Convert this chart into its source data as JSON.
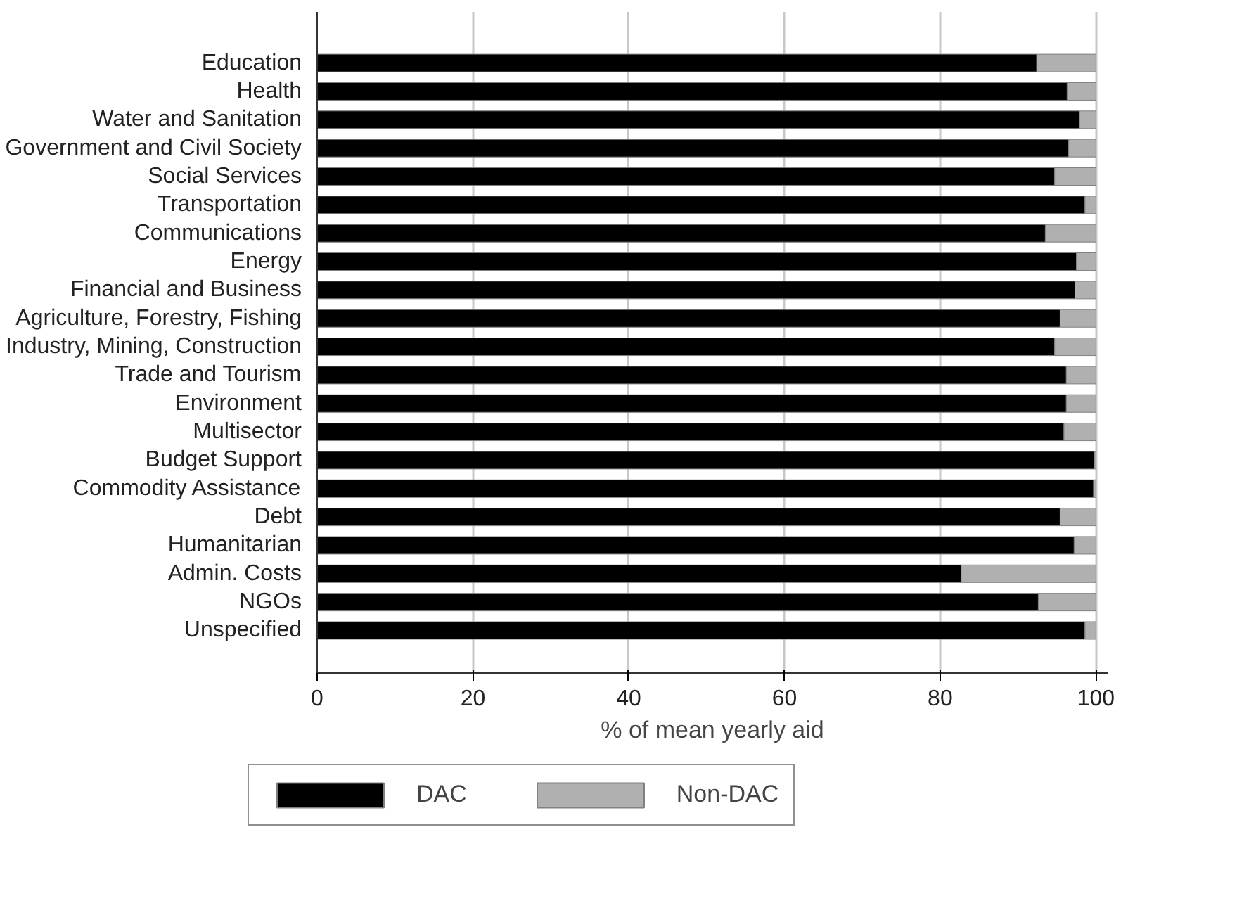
{
  "chart_data": {
    "type": "bar",
    "orientation": "horizontal",
    "stacked": true,
    "xlabel": "% of mean yearly aid",
    "categories": [
      "Education",
      "Health",
      "Water and Sanitation",
      "Government and Civil Society",
      "Social Services",
      "Transportation",
      "Communications",
      "Energy",
      "Financial and Business",
      "Agriculture, Forestry, Fishing",
      "Industry, Mining, Construction",
      "Trade and Tourism",
      "Environment",
      "Multisector",
      "Budget Support",
      "Commodity Assistance",
      "Debt",
      "Humanitarian",
      "Admin. Costs",
      "NGOs",
      "Unspecified"
    ],
    "series": [
      {
        "name": "DAC",
        "color": "#000000",
        "values": [
          92.4,
          96.3,
          97.9,
          96.5,
          94.7,
          98.6,
          93.5,
          97.5,
          97.3,
          95.4,
          94.7,
          96.2,
          96.2,
          95.9,
          99.8,
          99.7,
          95.4,
          97.2,
          82.7,
          92.6,
          98.6
        ]
      },
      {
        "name": "Non-DAC",
        "color": "#b0b0b0",
        "values": [
          7.6,
          3.7,
          2.1,
          3.5,
          5.3,
          1.4,
          6.5,
          2.5,
          2.7,
          4.6,
          5.3,
          3.8,
          3.8,
          4.1,
          0.2,
          0.3,
          4.6,
          2.8,
          17.3,
          7.4,
          1.4
        ]
      }
    ],
    "xlim": [
      0,
      101.5
    ],
    "xticks": [
      0,
      20,
      40,
      60,
      80,
      100
    ],
    "grid": "x",
    "legend": "bottom"
  }
}
